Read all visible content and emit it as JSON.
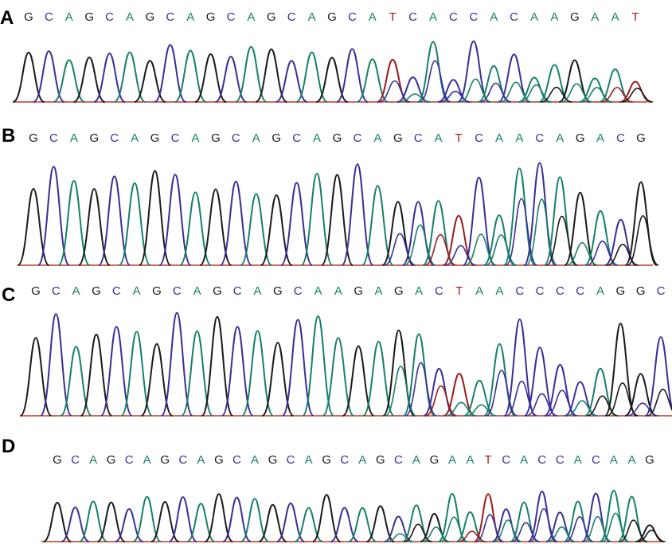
{
  "panels": [
    {
      "label": "A",
      "bases": [
        "G",
        "C",
        "A",
        "G",
        "C",
        "A",
        "G",
        "C",
        "A",
        "G",
        "C",
        "A",
        "G",
        "C",
        "A",
        "G",
        "C",
        "A",
        "T",
        "C",
        "A",
        "C",
        "C",
        "A",
        "C",
        "A",
        "A",
        "G",
        "A",
        "A",
        "T"
      ]
    },
    {
      "label": "B",
      "bases": [
        "G",
        "C",
        "A",
        "G",
        "C",
        "A",
        "G",
        "C",
        "A",
        "G",
        "C",
        "A",
        "G",
        "C",
        "A",
        "G",
        "C",
        "A",
        "G",
        "C",
        "A",
        "T",
        "C",
        "A",
        "A",
        "C",
        "A",
        "G",
        "A",
        "C",
        "G"
      ]
    },
    {
      "label": "C",
      "bases": [
        "G",
        "C",
        "A",
        "G",
        "C",
        "A",
        "G",
        "C",
        "A",
        "G",
        "C",
        "A",
        "G",
        "C",
        "A",
        "A",
        "G",
        "A",
        "G",
        "A",
        "C",
        "T",
        "A",
        "A",
        "C",
        "C",
        "C",
        "C",
        "A",
        "G",
        "G",
        "C"
      ]
    },
    {
      "label": "D",
      "bases": [
        "G",
        "C",
        "A",
        "G",
        "C",
        "A",
        "G",
        "C",
        "A",
        "G",
        "C",
        "A",
        "G",
        "C",
        "A",
        "G",
        "C",
        "A",
        "G",
        "C",
        "A",
        "G",
        "A",
        "A",
        "T",
        "C",
        "A",
        "C",
        "C",
        "A",
        "C",
        "A",
        "A",
        "G"
      ]
    }
  ],
  "base_colors": {
    "G": "#1a1a1a",
    "C": "#3a2f96",
    "A": "#17806a",
    "T": "#9a1c1c"
  }
}
